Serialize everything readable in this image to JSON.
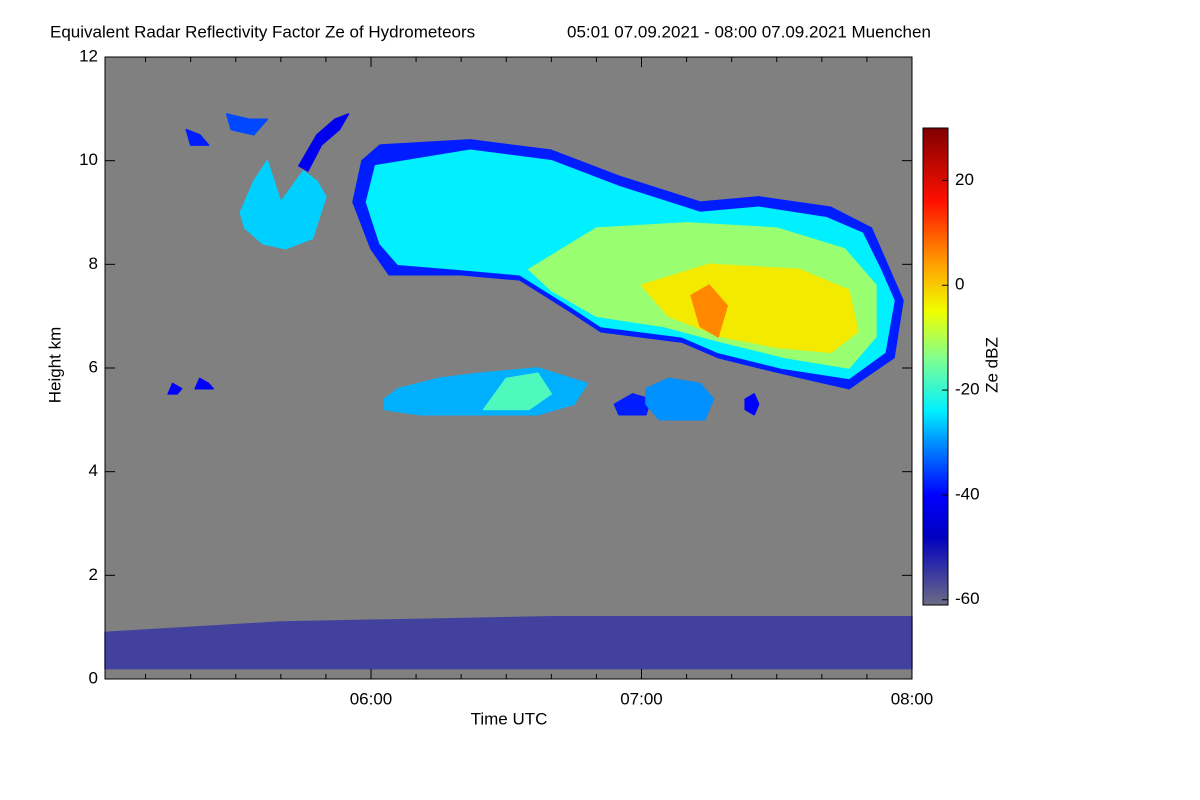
{
  "chart_data": {
    "type": "heatmap",
    "title": "Equivalent Radar Reflectivity Factor Ze of Hydrometeors",
    "subtitle": "05:01 07.09.2021 - 08:00 07.09.2021 Muenchen",
    "x_label": "Time UTC",
    "y_label": "Height km",
    "colorbar_label": "Ze dBZ",
    "background": "#808080",
    "xlim": [
      301,
      480
    ],
    "xticks": [
      {
        "value": 360,
        "label": "06:00"
      },
      {
        "value": 420,
        "label": "07:00"
      },
      {
        "value": 480,
        "label": "08:00"
      }
    ],
    "xminorticks": [
      310,
      320,
      330,
      340,
      350,
      370,
      380,
      390,
      400,
      410,
      430,
      440,
      450,
      460,
      470
    ],
    "ylim": [
      0,
      12
    ],
    "yticks": [
      0,
      2,
      4,
      6,
      8,
      10,
      12
    ],
    "clim": [
      -61,
      30
    ],
    "cticks": [
      -60,
      -40,
      -20,
      0,
      20
    ],
    "colormap": [
      [
        -61,
        "#6c6c86"
      ],
      [
        -48,
        "#0000c0"
      ],
      [
        -40,
        "#0000ff"
      ],
      [
        -30,
        "#0090ff"
      ],
      [
        -24,
        "#00f0ff"
      ],
      [
        -14,
        "#80ff90"
      ],
      [
        -5,
        "#f0ff00"
      ],
      [
        4,
        "#ffa000"
      ],
      [
        16,
        "#ff1000"
      ],
      [
        30,
        "#800000"
      ]
    ],
    "echoes": [
      {
        "value": -50,
        "points": [
          [
            301,
            0.2
          ],
          [
            301,
            0.9
          ],
          [
            340,
            1.1
          ],
          [
            400,
            1.2
          ],
          [
            480,
            1.2
          ],
          [
            480,
            0.2
          ]
        ]
      },
      {
        "value": -38,
        "points": [
          [
            356,
            9.2
          ],
          [
            358,
            10.0
          ],
          [
            362,
            10.3
          ],
          [
            382,
            10.4
          ],
          [
            400,
            10.2
          ],
          [
            415,
            9.7
          ],
          [
            433,
            9.2
          ],
          [
            446,
            9.3
          ],
          [
            462,
            9.1
          ],
          [
            471,
            8.7
          ],
          [
            475,
            7.9
          ],
          [
            478,
            7.3
          ],
          [
            476,
            6.2
          ],
          [
            466,
            5.6
          ],
          [
            451,
            5.9
          ],
          [
            437,
            6.2
          ],
          [
            429,
            6.5
          ],
          [
            411,
            6.7
          ],
          [
            404,
            7.1
          ],
          [
            393,
            7.7
          ],
          [
            380,
            7.8
          ],
          [
            364,
            7.8
          ],
          [
            360,
            8.3
          ]
        ]
      },
      {
        "value": -24,
        "points": [
          [
            359,
            9.2
          ],
          [
            361,
            9.9
          ],
          [
            382,
            10.2
          ],
          [
            400,
            10.0
          ],
          [
            415,
            9.5
          ],
          [
            433,
            9.0
          ],
          [
            446,
            9.1
          ],
          [
            461,
            8.9
          ],
          [
            469,
            8.6
          ],
          [
            473,
            7.9
          ],
          [
            476,
            7.3
          ],
          [
            474,
            6.3
          ],
          [
            466,
            5.8
          ],
          [
            451,
            6.0
          ],
          [
            437,
            6.3
          ],
          [
            429,
            6.6
          ],
          [
            411,
            6.8
          ],
          [
            404,
            7.2
          ],
          [
            393,
            7.8
          ],
          [
            380,
            7.9
          ],
          [
            366,
            8.0
          ],
          [
            362,
            8.4
          ]
        ]
      },
      {
        "value": -12,
        "points": [
          [
            395,
            7.9
          ],
          [
            410,
            8.7
          ],
          [
            430,
            8.8
          ],
          [
            450,
            8.7
          ],
          [
            465,
            8.3
          ],
          [
            472,
            7.6
          ],
          [
            472,
            6.6
          ],
          [
            466,
            6.0
          ],
          [
            452,
            6.2
          ],
          [
            438,
            6.5
          ],
          [
            425,
            6.8
          ],
          [
            410,
            7.0
          ],
          [
            400,
            7.5
          ]
        ]
      },
      {
        "value": -3,
        "points": [
          [
            420,
            7.6
          ],
          [
            435,
            8.0
          ],
          [
            455,
            7.9
          ],
          [
            466,
            7.5
          ],
          [
            468,
            6.7
          ],
          [
            462,
            6.3
          ],
          [
            450,
            6.4
          ],
          [
            438,
            6.6
          ],
          [
            426,
            7.0
          ]
        ]
      },
      {
        "value": 6,
        "points": [
          [
            431,
            7.4
          ],
          [
            435,
            7.6
          ],
          [
            439,
            7.2
          ],
          [
            437,
            6.6
          ],
          [
            433,
            6.8
          ]
        ]
      },
      {
        "value": -28,
        "points": [
          [
            363,
            5.4
          ],
          [
            366,
            5.6
          ],
          [
            375,
            5.8
          ],
          [
            384,
            5.9
          ],
          [
            397,
            6.0
          ],
          [
            408,
            5.7
          ],
          [
            405,
            5.3
          ],
          [
            397,
            5.1
          ],
          [
            393,
            5.1
          ],
          [
            382,
            5.1
          ],
          [
            371,
            5.1
          ],
          [
            363,
            5.2
          ]
        ]
      },
      {
        "value": -18,
        "points": [
          [
            385,
            5.2
          ],
          [
            390,
            5.8
          ],
          [
            397,
            5.9
          ],
          [
            400,
            5.5
          ],
          [
            395,
            5.2
          ]
        ]
      },
      {
        "value": -38,
        "points": [
          [
            414,
            5.3
          ],
          [
            418,
            5.5
          ],
          [
            422,
            5.4
          ],
          [
            421,
            5.1
          ],
          [
            415,
            5.1
          ]
        ]
      },
      {
        "value": -30,
        "points": [
          [
            421,
            5.6
          ],
          [
            426,
            5.8
          ],
          [
            433,
            5.7
          ],
          [
            436,
            5.4
          ],
          [
            434,
            5.0
          ],
          [
            424,
            5.0
          ],
          [
            421,
            5.3
          ]
        ]
      },
      {
        "value": -40,
        "points": [
          [
            443,
            5.4
          ],
          [
            445,
            5.5
          ],
          [
            446,
            5.3
          ],
          [
            445,
            5.1
          ],
          [
            443,
            5.2
          ]
        ]
      },
      {
        "value": -26,
        "points": [
          [
            331,
            9.0
          ],
          [
            334,
            9.6
          ],
          [
            337,
            10.0
          ],
          [
            340,
            9.2
          ],
          [
            345,
            9.8
          ],
          [
            348,
            9.6
          ],
          [
            350,
            9.3
          ],
          [
            347,
            8.5
          ],
          [
            341,
            8.3
          ],
          [
            336,
            8.4
          ],
          [
            332,
            8.7
          ]
        ]
      },
      {
        "value": -42,
        "points": [
          [
            344,
            9.9
          ],
          [
            348,
            10.5
          ],
          [
            352,
            10.8
          ],
          [
            355,
            10.9
          ],
          [
            353,
            10.6
          ],
          [
            349,
            10.3
          ],
          [
            346,
            9.8
          ]
        ]
      },
      {
        "value": -35,
        "points": [
          [
            328,
            10.9
          ],
          [
            333,
            10.8
          ],
          [
            337,
            10.8
          ],
          [
            334,
            10.5
          ],
          [
            329,
            10.6
          ]
        ]
      },
      {
        "value": -38,
        "points": [
          [
            319,
            10.6
          ],
          [
            322,
            10.5
          ],
          [
            324,
            10.3
          ],
          [
            320,
            10.3
          ]
        ]
      },
      {
        "value": -40,
        "points": [
          [
            315,
            5.5
          ],
          [
            316,
            5.7
          ],
          [
            318,
            5.6
          ],
          [
            317,
            5.5
          ]
        ]
      },
      {
        "value": -40,
        "points": [
          [
            321,
            5.6
          ],
          [
            322,
            5.8
          ],
          [
            324,
            5.7
          ],
          [
            325,
            5.6
          ]
        ]
      }
    ]
  }
}
